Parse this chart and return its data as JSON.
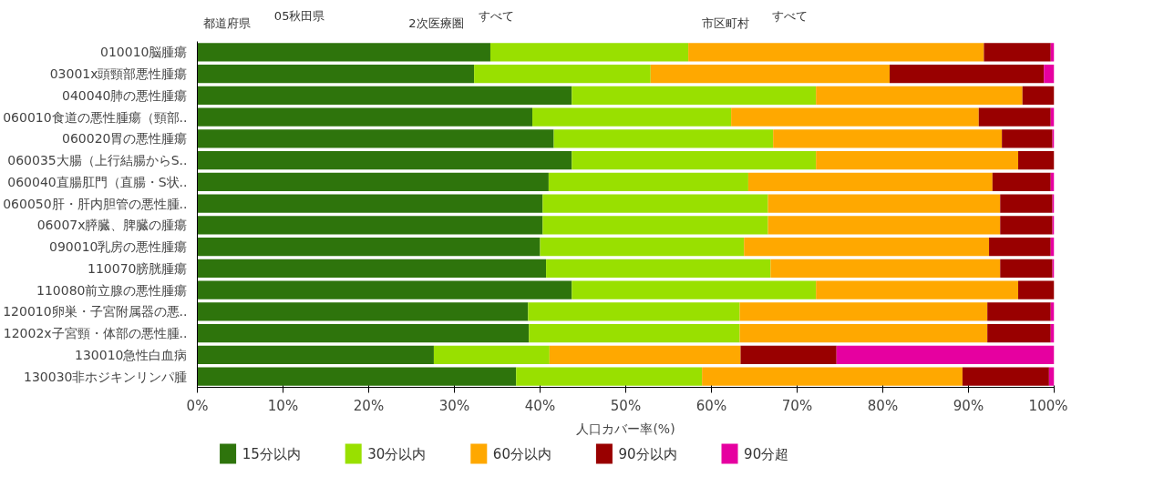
{
  "chart_data": {
    "type": "bar",
    "orientation": "horizontal",
    "stacked": true,
    "annotations": [
      "都道府県",
      "05秋田県",
      "2次医療圏",
      "すべて",
      "市区町村",
      "すべて"
    ],
    "xlabel": "人口カバー率(%)",
    "categories": [
      "010010脳腫瘍",
      "03001x頭頸部悪性腫瘍",
      "040040肺の悪性腫瘍",
      "060010食道の悪性腫瘍（頸部..",
      "060020胃の悪性腫瘍",
      "060035大腸（上行結腸からS..",
      "060040直腸肛門（直腸・S状..",
      "060050肝・肝内胆管の悪性腫..",
      "06007x膵臓、脾臓の腫瘍",
      "090010乳房の悪性腫瘍",
      "110070膀胱腫瘍",
      "110080前立腺の悪性腫瘍",
      "120010卵巣・子宮附属器の悪..",
      "12002x子宮頸・体部の悪性腫..",
      "130010急性白血病",
      "130030非ホジキンリンパ腫"
    ],
    "xlim": [
      0,
      100
    ],
    "xticks": [
      {
        "value": 0,
        "label": "0%"
      },
      {
        "value": 10,
        "label": "10%"
      },
      {
        "value": 20,
        "label": "20%"
      },
      {
        "value": 30,
        "label": "30%"
      },
      {
        "value": 40,
        "label": "40%"
      },
      {
        "value": 50,
        "label": "50%"
      },
      {
        "value": 60,
        "label": "60%"
      },
      {
        "value": 70,
        "label": "70%"
      },
      {
        "value": 80,
        "label": "80%"
      },
      {
        "value": 90,
        "label": "90%"
      },
      {
        "value": 100,
        "label": "100%"
      }
    ],
    "legend": "bottom",
    "grid": false,
    "series": [
      {
        "name": "15分以内",
        "color": "#2e740c",
        "values": [
          34.2,
          32.3,
          43.7,
          39.1,
          41.6,
          43.7,
          41.0,
          40.3,
          40.3,
          40.0,
          40.7,
          43.7,
          38.6,
          38.7,
          27.6,
          37.2
        ]
      },
      {
        "name": "30分以内",
        "color": "#99e000",
        "values": [
          23.1,
          20.6,
          28.5,
          23.2,
          25.6,
          28.5,
          23.3,
          26.3,
          26.3,
          23.8,
          26.2,
          28.5,
          24.7,
          24.6,
          13.5,
          21.7
        ]
      },
      {
        "name": "60分以内",
        "color": "#ffa800",
        "values": [
          34.5,
          27.9,
          24.1,
          28.9,
          26.7,
          23.6,
          28.5,
          27.1,
          27.1,
          28.6,
          26.8,
          23.6,
          28.9,
          28.9,
          22.3,
          30.4
        ]
      },
      {
        "name": "90分以内",
        "color": "#990000",
        "values": [
          7.8,
          18.0,
          3.7,
          8.4,
          5.9,
          4.2,
          6.8,
          6.1,
          6.1,
          7.2,
          6.1,
          4.2,
          7.4,
          7.4,
          11.2,
          10.1
        ]
      },
      {
        "name": "90分超",
        "color": "#e600a0",
        "values": [
          0.4,
          1.2,
          0,
          0.4,
          0.2,
          0,
          0.4,
          0.2,
          0.2,
          0.4,
          0.2,
          0,
          0.4,
          0.4,
          25.4,
          0.6
        ]
      }
    ]
  }
}
